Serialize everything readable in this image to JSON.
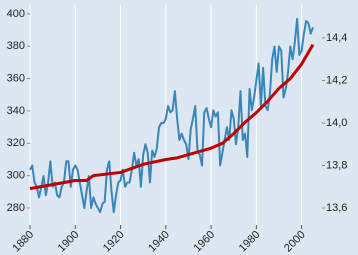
{
  "chart_data": {
    "type": "line",
    "background": "#dde7f1",
    "grid": "x",
    "xlim": [
      1880,
      2009
    ],
    "xticks": [
      1880,
      1900,
      1920,
      1940,
      1960,
      1980,
      2000
    ],
    "ylim": [
      269.5,
      405.5
    ],
    "yticks": [
      280,
      300,
      320,
      340,
      360,
      380,
      400
    ],
    "y2lim": [
      13.52,
      14.555
    ],
    "y2ticks": [
      {
        "value": 13.6,
        "label": "13,6"
      },
      {
        "value": 13.8,
        "label": "13,8"
      },
      {
        "value": 14.0,
        "label": "14,0"
      },
      {
        "value": 14.2,
        "label": "14,2"
      },
      {
        "value": 14.4,
        "label": "14,4"
      }
    ],
    "series": [
      {
        "color": "#3a86b8",
        "axis": "y2",
        "width": 2,
        "x": [
          1880,
          1881,
          1882,
          1883,
          1884,
          1885,
          1886,
          1887,
          1888,
          1889,
          1890,
          1891,
          1892,
          1893,
          1894,
          1895,
          1896,
          1897,
          1898,
          1899,
          1900,
          1901,
          1902,
          1903,
          1904,
          1905,
          1906,
          1907,
          1908,
          1909,
          1910,
          1911,
          1912,
          1913,
          1914,
          1915,
          1916,
          1917,
          1918,
          1919,
          1920,
          1921,
          1922,
          1923,
          1924,
          1925,
          1926,
          1927,
          1928,
          1929,
          1930,
          1931,
          1932,
          1933,
          1934,
          1935,
          1936,
          1937,
          1938,
          1939,
          1940,
          1941,
          1942,
          1943,
          1944,
          1945,
          1946,
          1947,
          1948,
          1949,
          1950,
          1951,
          1952,
          1953,
          1954,
          1955,
          1956,
          1957,
          1958,
          1959,
          1960,
          1961,
          1962,
          1963,
          1964,
          1965,
          1966,
          1967,
          1968,
          1969,
          1970,
          1971,
          1972,
          1973,
          1974,
          1975,
          1976,
          1977,
          1978,
          1979,
          1980,
          1981,
          1982,
          1983,
          1984,
          1985,
          1986,
          1987,
          1988,
          1989,
          1990,
          1991,
          1992,
          1993,
          1994,
          1995,
          1996,
          1997,
          1998,
          1999,
          2000,
          2001,
          2002,
          2003,
          2004,
          2005
        ],
        "values": [
          13.78,
          13.8,
          13.72,
          13.7,
          13.65,
          13.7,
          13.75,
          13.66,
          13.72,
          13.82,
          13.7,
          13.72,
          13.66,
          13.65,
          13.7,
          13.72,
          13.82,
          13.82,
          13.7,
          13.78,
          13.8,
          13.78,
          13.72,
          13.66,
          13.6,
          13.68,
          13.75,
          13.6,
          13.65,
          13.62,
          13.6,
          13.58,
          13.62,
          13.63,
          13.78,
          13.82,
          13.68,
          13.58,
          13.66,
          13.72,
          13.73,
          13.78,
          13.7,
          13.72,
          13.72,
          13.78,
          13.86,
          13.8,
          13.83,
          13.7,
          13.85,
          13.9,
          13.86,
          13.72,
          13.87,
          13.84,
          13.88,
          13.98,
          14.0,
          14.0,
          14.02,
          14.08,
          14.05,
          14.06,
          14.15,
          14.02,
          13.92,
          13.95,
          13.92,
          13.9,
          13.83,
          13.97,
          14.02,
          14.08,
          13.87,
          13.85,
          13.8,
          14.05,
          14.07,
          14.02,
          13.98,
          14.06,
          14.03,
          14.05,
          13.8,
          13.86,
          13.92,
          13.98,
          13.92,
          14.06,
          14.02,
          13.9,
          13.98,
          14.15,
          13.92,
          13.95,
          13.84,
          14.16,
          14.06,
          14.12,
          14.2,
          14.28,
          14.08,
          14.26,
          14.08,
          14.06,
          14.14,
          14.3,
          14.36,
          14.24,
          14.36,
          14.34,
          14.12,
          14.16,
          14.24,
          14.36,
          14.3,
          14.38,
          14.49,
          14.32,
          14.34,
          14.42,
          14.48,
          14.47,
          14.42,
          14.45
        ]
      },
      {
        "color": "#c00000",
        "axis": "y",
        "width": 3,
        "x": [
          1880,
          1900,
          1905,
          1908,
          1920,
          1930,
          1940,
          1945,
          1955,
          1960,
          1965,
          1970,
          1975,
          1980,
          1985,
          1990,
          1995,
          2000,
          2005
        ],
        "values": [
          292,
          297,
          297,
          300,
          302,
          307,
          310,
          311,
          315,
          317,
          320,
          326,
          333,
          339,
          346,
          354,
          360,
          369,
          381
        ]
      }
    ]
  }
}
